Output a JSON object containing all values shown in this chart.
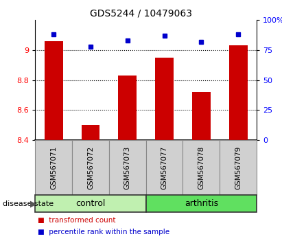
{
  "title": "GDS5244 / 10479063",
  "samples": [
    "GSM567071",
    "GSM567072",
    "GSM567073",
    "GSM567077",
    "GSM567078",
    "GSM567079"
  ],
  "transformed_count": [
    9.06,
    8.5,
    8.83,
    8.95,
    8.72,
    9.03
  ],
  "percentile_rank": [
    88,
    78,
    83,
    87,
    82,
    88
  ],
  "ylim_left": [
    8.4,
    9.2
  ],
  "ylim_right": [
    0,
    100
  ],
  "yticks_left": [
    8.4,
    8.6,
    8.8,
    9.0
  ],
  "ytick_labels_left": [
    "8.4",
    "8.6",
    "8.8",
    "9"
  ],
  "yticks_right": [
    0,
    25,
    50,
    75,
    100
  ],
  "ytick_labels_right": [
    "0",
    "25",
    "50",
    "75",
    "100%"
  ],
  "groups": [
    {
      "name": "control",
      "indices": [
        0,
        1,
        2
      ],
      "color": "#c0f0b0"
    },
    {
      "name": "arthritis",
      "indices": [
        3,
        4,
        5
      ],
      "color": "#60e060"
    }
  ],
  "bar_color": "#cc0000",
  "dot_color": "#0000cc",
  "bar_width": 0.5,
  "tick_label_area_color": "#d0d0d0",
  "group_label": "disease state",
  "gridline_color": "#000000"
}
